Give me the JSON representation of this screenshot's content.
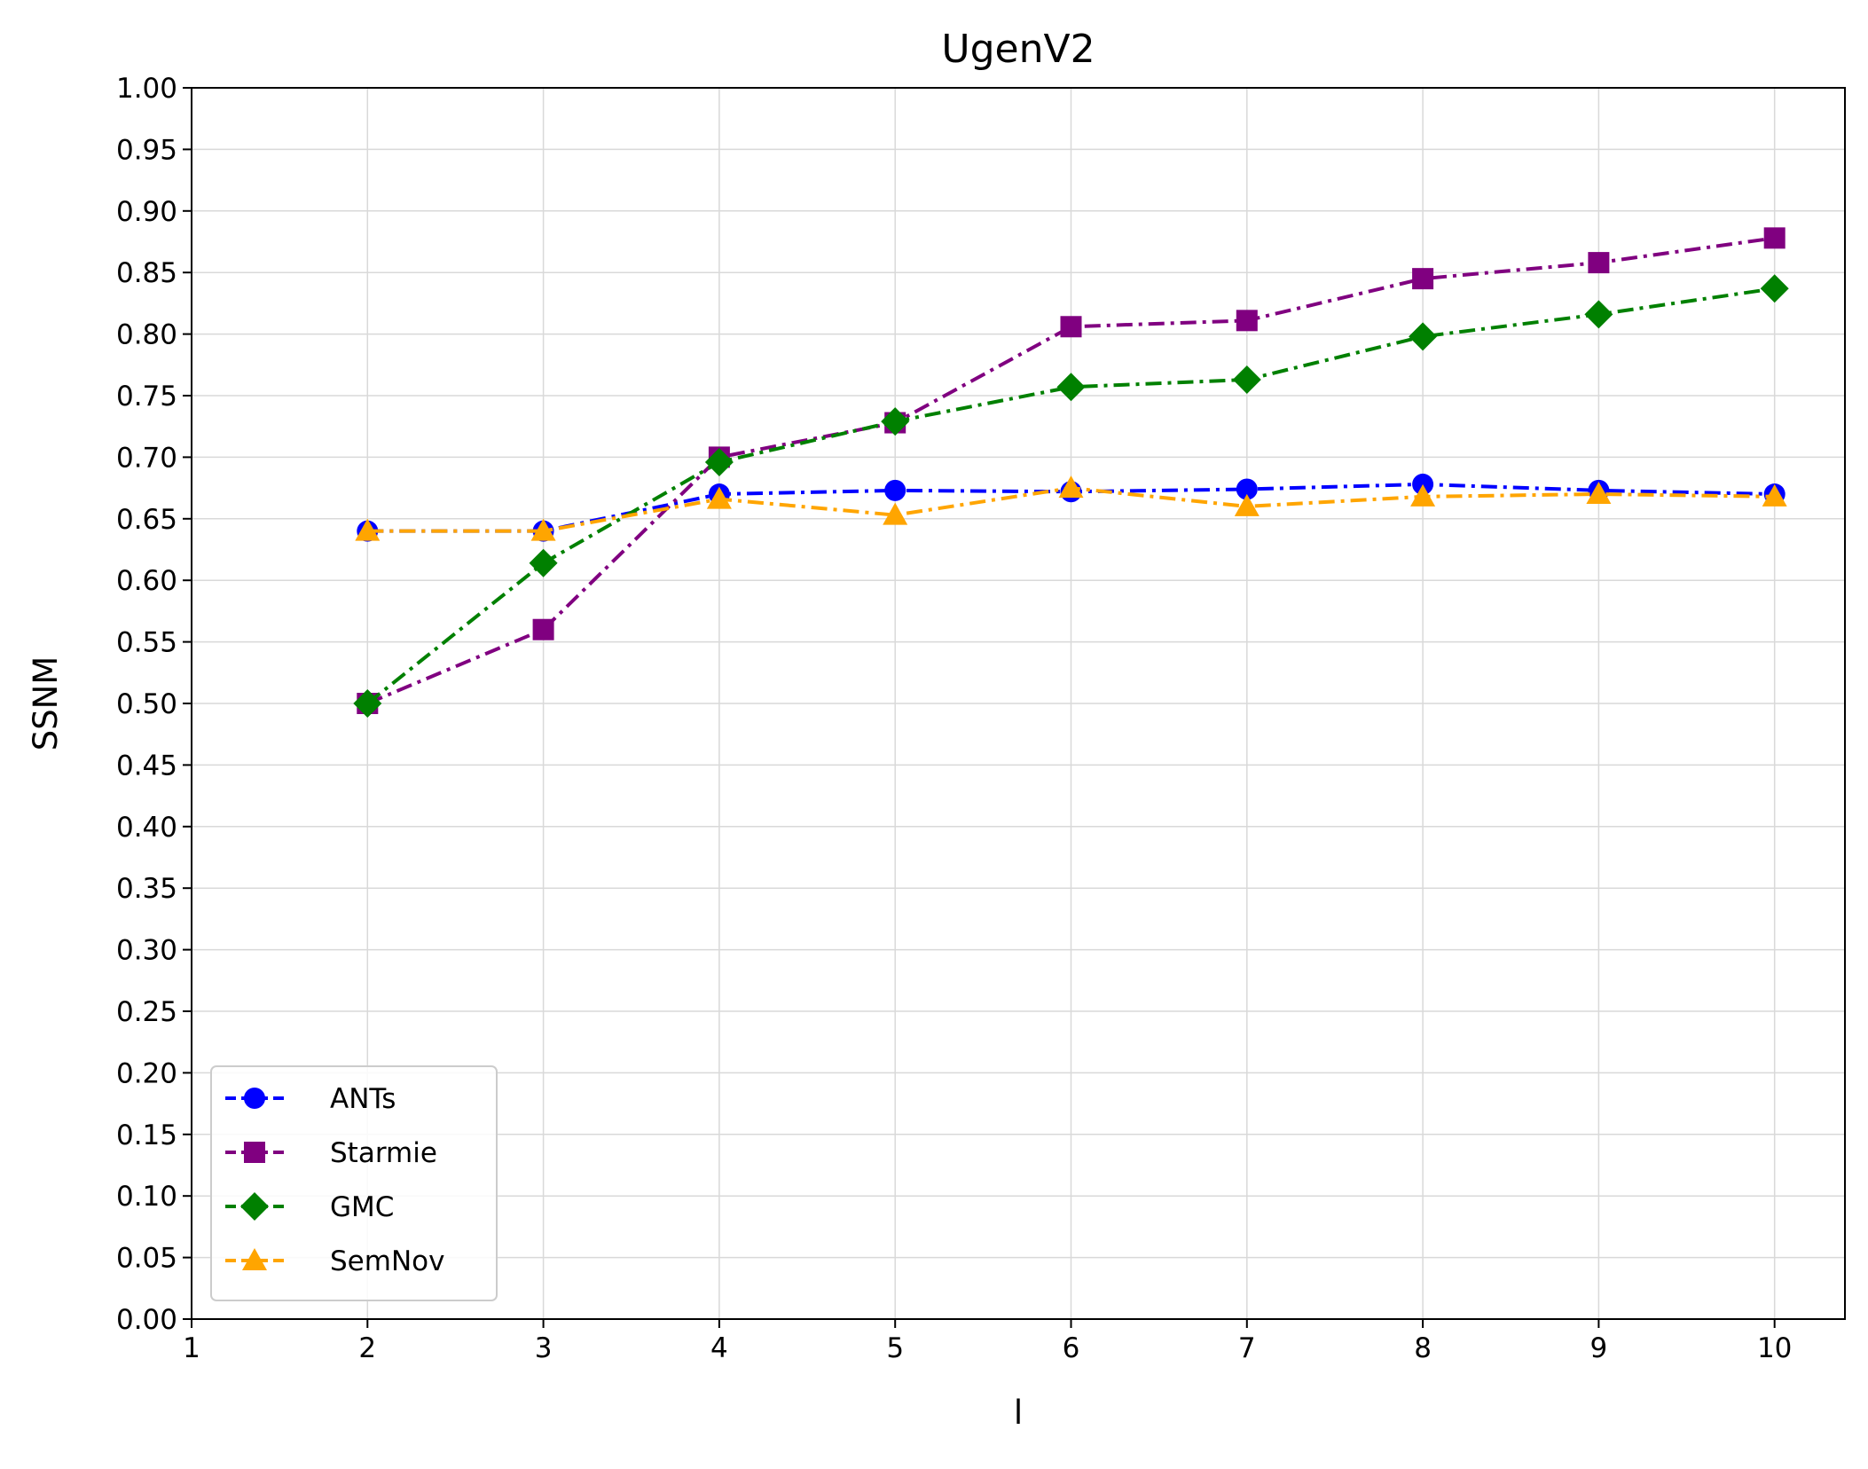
{
  "chart_data": {
    "type": "line",
    "title": "UgenV2",
    "xlabel": "l",
    "ylabel": "SSNM",
    "xlim": [
      1,
      10.4
    ],
    "ylim": [
      0,
      1
    ],
    "xticks": [
      "1",
      "2",
      "3",
      "4",
      "5",
      "6",
      "7",
      "8",
      "9",
      "10"
    ],
    "yticks": [
      "0.00",
      "0.05",
      "0.10",
      "0.15",
      "0.20",
      "0.25",
      "0.30",
      "0.35",
      "0.40",
      "0.45",
      "0.50",
      "0.55",
      "0.60",
      "0.65",
      "0.70",
      "0.75",
      "0.80",
      "0.85",
      "0.90",
      "0.95",
      "1.00"
    ],
    "grid": true,
    "legend_position": "lower-left",
    "x": [
      2,
      3,
      4,
      5,
      6,
      7,
      8,
      9,
      10
    ],
    "series": [
      {
        "name": "ANTs",
        "color": "#0000ff",
        "marker": "circle",
        "values": [
          0.64,
          0.64,
          0.67,
          0.673,
          0.672,
          0.674,
          0.678,
          0.673,
          0.67
        ]
      },
      {
        "name": "Starmie",
        "color": "#800080",
        "marker": "square",
        "values": [
          0.5,
          0.56,
          0.7,
          0.728,
          0.806,
          0.811,
          0.845,
          0.858,
          0.878
        ]
      },
      {
        "name": "GMC",
        "color": "#008000",
        "marker": "diamond",
        "values": [
          0.5,
          0.614,
          0.696,
          0.729,
          0.757,
          0.763,
          0.798,
          0.816,
          0.837
        ]
      },
      {
        "name": "SemNov",
        "color": "#ffa500",
        "marker": "triangle",
        "values": [
          0.64,
          0.64,
          0.666,
          0.653,
          0.675,
          0.66,
          0.668,
          0.67,
          0.668
        ]
      }
    ]
  }
}
